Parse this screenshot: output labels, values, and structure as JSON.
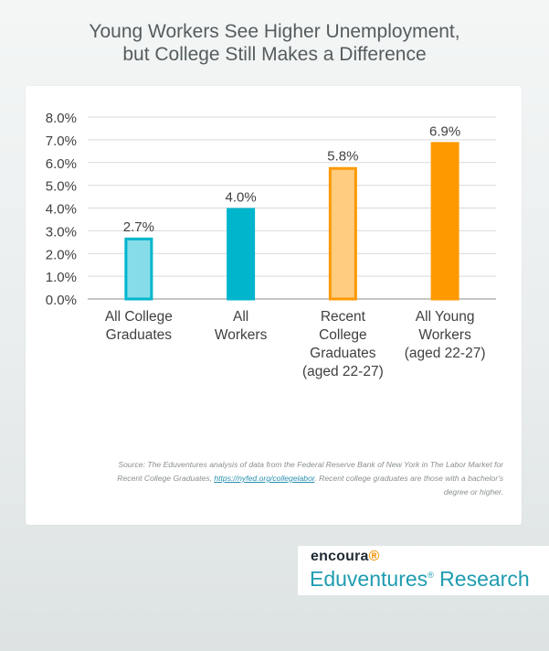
{
  "title_lines": [
    "Young Workers See Higher Unemployment,",
    "but College Still Makes a Difference"
  ],
  "source": {
    "prefix": "Source: The Eduventures analysis of data from the Federal Reserve Bank of New York in The Labor Market for Recent College Graduates, ",
    "link": "https://nyfed.org/collegelabor",
    "suffix": ". Recent college graduates are those with a bachelor's degree or higher."
  },
  "logo": {
    "brand": "encoura",
    "product": "Eduventures",
    "product_suffix": "Research",
    "mark": "®"
  },
  "colors": {
    "teal": "#00b5cc",
    "teal_light": "#86dde9",
    "orange": "#ff9900",
    "orange_light": "#ffcc80"
  },
  "chart_data": {
    "type": "bar",
    "categories": [
      [
        "All College",
        "Graduates"
      ],
      [
        "All",
        "Workers"
      ],
      [
        "Recent",
        "College",
        "Graduates",
        "(aged 22-27)"
      ],
      [
        "All Young",
        "Workers",
        "(aged 22-27)"
      ]
    ],
    "values": [
      2.7,
      4.0,
      5.8,
      6.9
    ],
    "value_labels": [
      "2.7%",
      "4.0%",
      "5.8%",
      "6.9%"
    ],
    "bar_styles": [
      "teal-light",
      "teal",
      "orange-light",
      "orange"
    ],
    "ylim": [
      0,
      8
    ],
    "yticks": [
      "0.0%",
      "1.0%",
      "2.0%",
      "3.0%",
      "4.0%",
      "5.0%",
      "6.0%",
      "7.0%",
      "8.0%"
    ],
    "grid": true,
    "legend": "none"
  }
}
